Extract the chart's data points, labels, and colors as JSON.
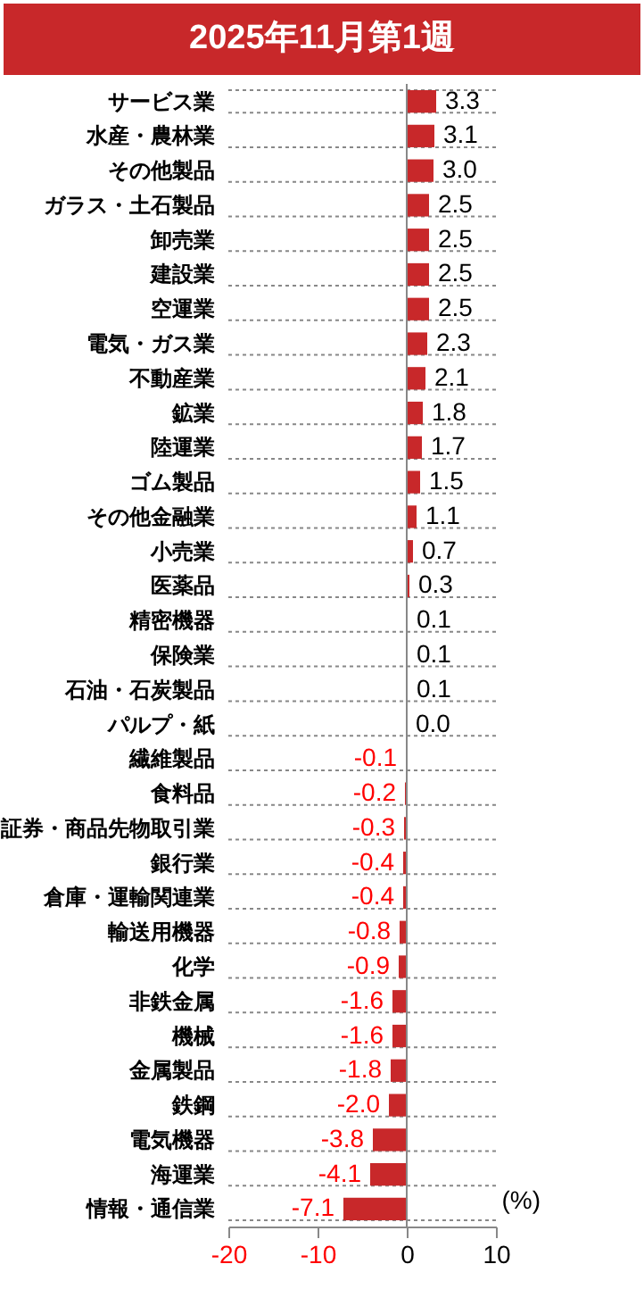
{
  "chart_data": {
    "type": "bar",
    "orientation": "horizontal",
    "title": "2025年11月第1週",
    "categories": [
      "サービス業",
      "水産・農林業",
      "その他製品",
      "ガラス・土石製品",
      "卸売業",
      "建設業",
      "空運業",
      "電気・ガス業",
      "不動産業",
      "鉱業",
      "陸運業",
      "ゴム製品",
      "その他金融業",
      "小売業",
      "医薬品",
      "精密機器",
      "保険業",
      "石油・石炭製品",
      "パルプ・紙",
      "繊維製品",
      "食料品",
      "証券・商品先物取引業",
      "銀行業",
      "倉庫・運輸関連業",
      "輸送用機器",
      "化学",
      "非鉄金属",
      "機械",
      "金属製品",
      "鉄鋼",
      "電気機器",
      "海運業",
      "情報・通信業"
    ],
    "values": [
      3.3,
      3.1,
      3.0,
      2.5,
      2.5,
      2.5,
      2.5,
      2.3,
      2.1,
      1.8,
      1.7,
      1.5,
      1.1,
      0.7,
      0.3,
      0.1,
      0.1,
      0.1,
      0.0,
      -0.1,
      -0.2,
      -0.3,
      -0.4,
      -0.4,
      -0.8,
      -0.9,
      -1.6,
      -1.6,
      -1.8,
      -2.0,
      -3.8,
      -4.1,
      -7.1
    ],
    "value_labels": [
      "3.3",
      "3.1",
      "3.0",
      "2.5",
      "2.5",
      "2.5",
      "2.5",
      "2.3",
      "2.1",
      "1.8",
      "1.7",
      "1.5",
      "1.1",
      "0.7",
      "0.3",
      "0.1",
      "0.1",
      "0.1",
      "0.0",
      "-0.1",
      "-0.2",
      "-0.3",
      "-0.4",
      "-0.4",
      "-0.8",
      "-0.9",
      "-1.6",
      "-1.6",
      "-1.8",
      "-2.0",
      "-3.8",
      "-4.1",
      "-7.1"
    ],
    "color": "#c8282a",
    "xlim": [
      -20,
      10
    ],
    "xticks": [
      -20,
      -10,
      0,
      10
    ],
    "grid": "y",
    "ref_lines": [
      {
        "axis": "x",
        "value": 0
      }
    ],
    "annotations": [
      "(%)"
    ]
  }
}
